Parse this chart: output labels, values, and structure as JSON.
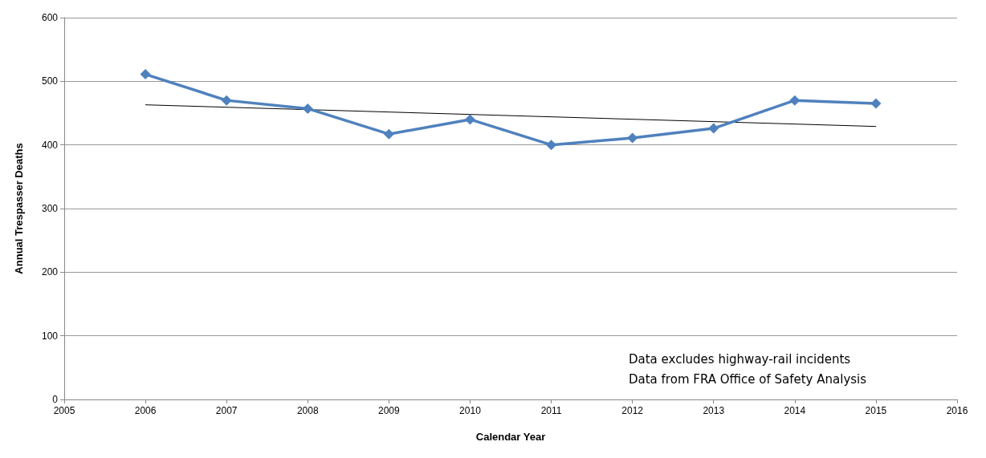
{
  "chart_data": {
    "type": "line",
    "xlabel": "Calendar Year",
    "ylabel": "Annual Trespasser Deaths",
    "xlim": [
      2005,
      2016
    ],
    "xticks": [
      2005,
      2006,
      2007,
      2008,
      2009,
      2010,
      2011,
      2012,
      2013,
      2014,
      2015,
      2016
    ],
    "ylim": [
      0,
      600
    ],
    "yticks": [
      0,
      100,
      200,
      300,
      400,
      500,
      600
    ],
    "grid": "y",
    "series": [
      {
        "color": "#4f81bd",
        "marker": "diamond",
        "x": [
          2006,
          2007,
          2008,
          2009,
          2010,
          2011,
          2012,
          2013,
          2014,
          2015
        ],
        "values": [
          511,
          470,
          457,
          417,
          440,
          400,
          411,
          426,
          470,
          465
        ]
      },
      {
        "color": "#000000",
        "marker": "none",
        "x": [
          2006,
          2015
        ],
        "values": [
          463,
          429
        ]
      }
    ],
    "annotations": [
      "Data excludes highway-rail incidents",
      "Data from FRA Office of Safety Analysis"
    ]
  }
}
